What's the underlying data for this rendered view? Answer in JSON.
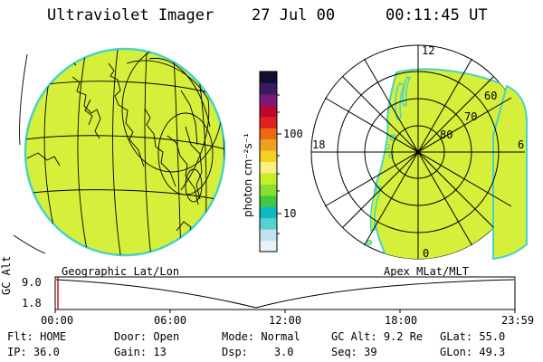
{
  "header": {
    "title": "Ultraviolet Imager",
    "date": "27 Jul 00",
    "time": "00:11:45 UT"
  },
  "colorbar": {
    "unit_label": "photon cm⁻²s⁻¹",
    "ticks": [
      {
        "label": "100"
      },
      {
        "label": "10"
      }
    ],
    "colors": [
      "#e8f2f8",
      "#bfe4ec",
      "#58d0d0",
      "#10b8c0",
      "#40c840",
      "#8ade30",
      "#c8ee28",
      "#f6f080",
      "#f4d020",
      "#f0a020",
      "#ee6810",
      "#e02020",
      "#b80830",
      "#7a1a78",
      "#3a1a60",
      "#101030"
    ]
  },
  "left_map": {
    "caption": "Geographic Lat/Lon",
    "fill_color": "#d6ef3a",
    "rim_color": "#46d2c8"
  },
  "right_map": {
    "caption": "Apex MLat/MLT",
    "lat_labels": [
      "80",
      "70",
      "60"
    ],
    "mlt_labels": {
      "top": "12",
      "left": "18",
      "right": "6",
      "bottom": "0"
    }
  },
  "timeline": {
    "axis_label": "GC Alt",
    "y_ticks": [
      "9.0",
      "1.8"
    ],
    "x_ticks": [
      "00:00",
      "06:00",
      "12:00",
      "18:00",
      "23:59"
    ],
    "marker_color": "#d01010"
  },
  "status": {
    "flt_label": "Flt:",
    "flt_value": "HOME",
    "ip_label": "IP:",
    "ip_value": "36.0",
    "door_label": "Door:",
    "door_value": "Open",
    "gain_label": "Gain:",
    "gain_value": "13",
    "mode_label": "Mode:",
    "mode_value": "Normal",
    "dsp_label": "Dsp:",
    "dsp_value": "3.0",
    "gcalt_label": "GC Alt:",
    "gcalt_value": "9.2 Re",
    "seq_label": "Seq:",
    "seq_value": "39",
    "glat_label": "GLat:",
    "glat_value": "55.0",
    "glon_label": "GLon:",
    "glon_value": "49.3"
  }
}
